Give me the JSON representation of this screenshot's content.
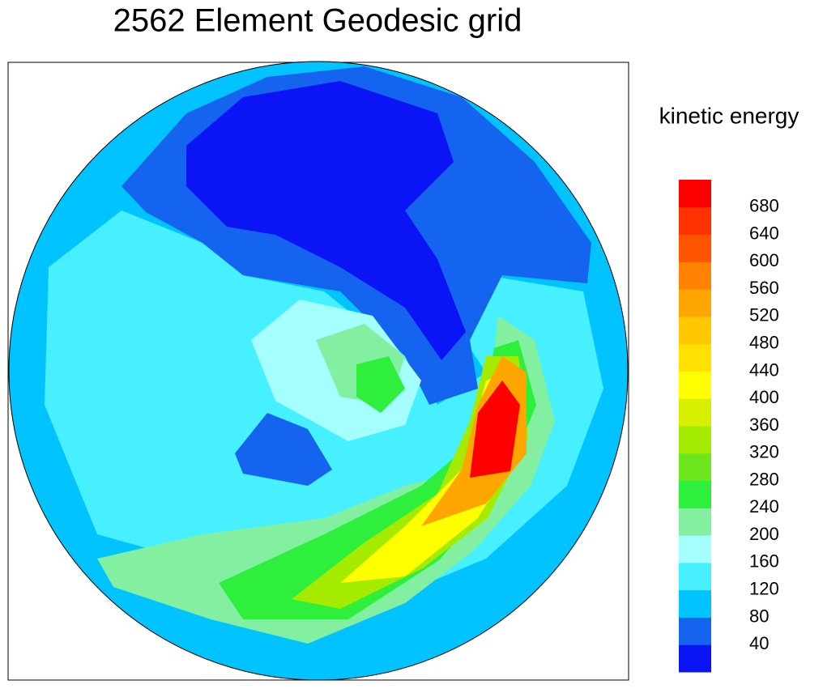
{
  "title": "2562 Element Geodesic grid",
  "colorbar": {
    "label": "kinetic energy",
    "levels": [
      40,
      80,
      120,
      160,
      200,
      240,
      280,
      320,
      360,
      400,
      440,
      480,
      520,
      560,
      600,
      640,
      680
    ],
    "colors": [
      "#0a14f5",
      "#1464f0",
      "#00c3ff",
      "#46f0ff",
      "#a5ffff",
      "#82f0a0",
      "#2eef3c",
      "#6ee61e",
      "#a5eb00",
      "#d7f000",
      "#ffff00",
      "#ffe100",
      "#ffc800",
      "#ffa500",
      "#ff8200",
      "#ff5500",
      "#ff3200",
      "#ff0000"
    ]
  }
}
